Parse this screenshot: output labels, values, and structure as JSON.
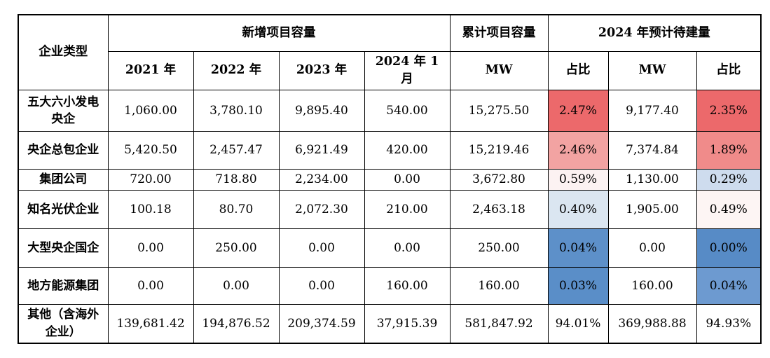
{
  "colors": {
    "border": "#000000",
    "scale_red_max": "#ec696b",
    "scale_mid_white": "#fcf2f2",
    "scale_blue_min": "#5a8ec8"
  },
  "table": {
    "header": {
      "company_type": "企业类型",
      "new_capacity_group": "新增项目容量",
      "cumulative_group": "累计项目容量",
      "plan2024_group": "2024 年预计待建量",
      "year_2021": "2021 年",
      "year_2022": "2022 年",
      "year_2023": "2023 年",
      "year_2024m1": "2024 年 1 月",
      "mw_cumulative": "MW",
      "pct_1": "占比",
      "mw_2024": "MW",
      "pct_2": "占比"
    },
    "rows": [
      {
        "label": "五大六小发电央企",
        "y2021": "1,060.00",
        "y2022": "3,780.10",
        "y2023": "9,895.40",
        "y2024m1": "540.00",
        "cum_mw": "15,275.50",
        "pct1": "2.47%",
        "mw2024": "9,177.40",
        "pct2": "2.35%",
        "pct1_bg": "#ec696b",
        "pct2_bg": "#ec696b"
      },
      {
        "label": "央企总包企业",
        "y2021": "5,420.50",
        "y2022": "2,457.47",
        "y2023": "6,921.49",
        "y2024m1": "420.00",
        "cum_mw": "15,219.46",
        "pct1": "2.46%",
        "mw2024": "7,374.84",
        "pct2": "1.89%",
        "pct1_bg": "#f2a3a2",
        "pct2_bg": "#f08b8a"
      },
      {
        "label": "集团公司",
        "y2021": "720.00",
        "y2022": "718.80",
        "y2023": "2,234.00",
        "y2024m1": "0.00",
        "cum_mw": "3,672.80",
        "pct1": "0.59%",
        "mw2024": "1,130.00",
        "pct2": "0.29%",
        "pct1_bg": "#fcf2f2",
        "pct2_bg": "#cedcee"
      },
      {
        "label": "知名光伏企业",
        "y2021": "100.18",
        "y2022": "80.70",
        "y2023": "2,072.30",
        "y2024m1": "210.00",
        "cum_mw": "2,463.18",
        "pct1": "0.40%",
        "mw2024": "1,905.00",
        "pct2": "0.49%",
        "pct1_bg": "#dbe6f1",
        "pct2_bg": "#fdf5f4"
      },
      {
        "label": "大型央企国企",
        "y2021": "0.00",
        "y2022": "250.00",
        "y2023": "0.00",
        "y2024m1": "0.00",
        "cum_mw": "250.00",
        "pct1": "0.04%",
        "mw2024": "0.00",
        "pct2": "0.00%",
        "pct1_bg": "#5d90c9",
        "pct2_bg": "#578bc6"
      },
      {
        "label": "地方能源集团",
        "y2021": "0.00",
        "y2022": "0.00",
        "y2023": "0.00",
        "y2024m1": "160.00",
        "cum_mw": "160.00",
        "pct1": "0.03%",
        "mw2024": "160.00",
        "pct2": "0.04%",
        "pct1_bg": "#5a8ec8",
        "pct2_bg": "#6d9ad0"
      },
      {
        "label": "其他（含海外企业）",
        "y2021": "139,681.42",
        "y2022": "194,876.52",
        "y2023": "209,374.59",
        "y2024m1": "37,915.39",
        "cum_mw": "581,847.92",
        "pct1": "94.01%",
        "mw2024": "369,988.88",
        "pct2": "94.93%",
        "pct1_bg": "#ffffff",
        "pct2_bg": "#ffffff"
      }
    ]
  }
}
